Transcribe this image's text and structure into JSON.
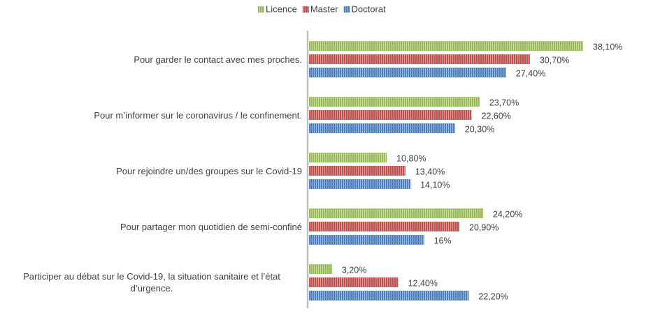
{
  "chart_data": {
    "type": "bar",
    "orientation": "horizontal",
    "categories": [
      "Pour garder le contact avec mes proches.",
      "Pour m’informer sur le coronavirus / le confinement.",
      "Pour rejoindre un/des groupes sur le Covid-19",
      "Pour partager mon quotidien de semi-confiné",
      "Participer au débat sur le Covid-19, la situation sanitaire et l’état d’urgence."
    ],
    "series": [
      {
        "name": "Licence",
        "color": "#9bbb59",
        "values": [
          38.1,
          23.7,
          10.8,
          24.2,
          3.2
        ],
        "value_labels": [
          "38,10%",
          "23,70%",
          "10,80%",
          "24,20%",
          "3,20%"
        ]
      },
      {
        "name": "Master",
        "color": "#c0504d",
        "values": [
          30.7,
          22.6,
          13.4,
          20.9,
          12.4
        ],
        "value_labels": [
          "30,70%",
          "22,60%",
          "13,40%",
          "20,90%",
          "12,40%"
        ]
      },
      {
        "name": "Doctorat",
        "color": "#4f81bd",
        "values": [
          27.4,
          20.3,
          14.1,
          16,
          22.2
        ],
        "value_labels": [
          "27,40%",
          "20,30%",
          "14,10%",
          "16%",
          "22,20%"
        ]
      }
    ],
    "legend": "top"
  }
}
